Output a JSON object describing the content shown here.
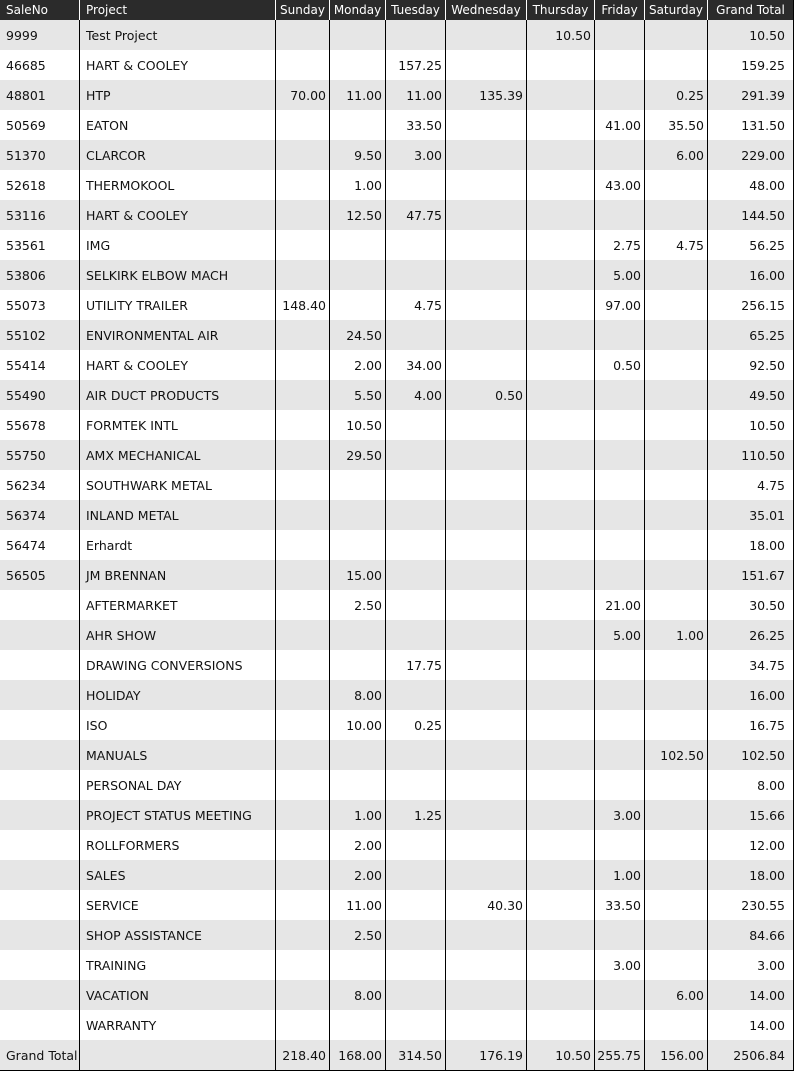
{
  "headers": [
    "SaleNo",
    "Project",
    "Sunday",
    "Monday",
    "Tuesday",
    "Wednesday",
    "Thursday",
    "Friday",
    "Saturday",
    "Grand Total"
  ],
  "rows": [
    [
      "9999",
      "Test Project",
      "",
      "",
      "",
      "",
      "10.50",
      "",
      "",
      "10.50"
    ],
    [
      "46685",
      "HART & COOLEY",
      "",
      "",
      "157.25",
      "",
      "",
      "",
      "",
      "159.25"
    ],
    [
      "48801",
      "HTP",
      "70.00",
      "11.00",
      "11.00",
      "135.39",
      "",
      "",
      "0.25",
      "291.39"
    ],
    [
      "50569",
      "EATON",
      "",
      "",
      "33.50",
      "",
      "",
      "41.00",
      "35.50",
      "131.50"
    ],
    [
      "51370",
      "CLARCOR",
      "",
      "9.50",
      "3.00",
      "",
      "",
      "",
      "6.00",
      "229.00"
    ],
    [
      "52618",
      "THERMOKOOL",
      "",
      "1.00",
      "",
      "",
      "",
      "43.00",
      "",
      "48.00"
    ],
    [
      "53116",
      "HART & COOLEY",
      "",
      "12.50",
      "47.75",
      "",
      "",
      "",
      "",
      "144.50"
    ],
    [
      "53561",
      "IMG",
      "",
      "",
      "",
      "",
      "",
      "2.75",
      "4.75",
      "56.25"
    ],
    [
      "53806",
      "SELKIRK ELBOW MACH",
      "",
      "",
      "",
      "",
      "",
      "5.00",
      "",
      "16.00"
    ],
    [
      "55073",
      "UTILITY TRAILER",
      "148.40",
      "",
      "4.75",
      "",
      "",
      "97.00",
      "",
      "256.15"
    ],
    [
      "55102",
      "ENVIRONMENTAL AIR",
      "",
      "24.50",
      "",
      "",
      "",
      "",
      "",
      "65.25"
    ],
    [
      "55414",
      "HART & COOLEY",
      "",
      "2.00",
      "34.00",
      "",
      "",
      "0.50",
      "",
      "92.50"
    ],
    [
      "55490",
      "AIR DUCT PRODUCTS",
      "",
      "5.50",
      "4.00",
      "0.50",
      "",
      "",
      "",
      "49.50"
    ],
    [
      "55678",
      "FORMTEK INTL",
      "",
      "10.50",
      "",
      "",
      "",
      "",
      "",
      "10.50"
    ],
    [
      "55750",
      "AMX MECHANICAL",
      "",
      "29.50",
      "",
      "",
      "",
      "",
      "",
      "110.50"
    ],
    [
      "56234",
      "SOUTHWARK METAL",
      "",
      "",
      "",
      "",
      "",
      "",
      "",
      "4.75"
    ],
    [
      "56374",
      "INLAND METAL",
      "",
      "",
      "",
      "",
      "",
      "",
      "",
      "35.01"
    ],
    [
      "56474",
      "Erhardt",
      "",
      "",
      "",
      "",
      "",
      "",
      "",
      "18.00"
    ],
    [
      "56505",
      "JM BRENNAN",
      "",
      "15.00",
      "",
      "",
      "",
      "",
      "",
      "151.67"
    ],
    [
      "",
      "AFTERMARKET",
      "",
      "2.50",
      "",
      "",
      "",
      "21.00",
      "",
      "30.50"
    ],
    [
      "",
      "AHR SHOW",
      "",
      "",
      "",
      "",
      "",
      "5.00",
      "1.00",
      "26.25"
    ],
    [
      "",
      "DRAWING CONVERSIONS",
      "",
      "",
      "17.75",
      "",
      "",
      "",
      "",
      "34.75"
    ],
    [
      "",
      "HOLIDAY",
      "",
      "8.00",
      "",
      "",
      "",
      "",
      "",
      "16.00"
    ],
    [
      "",
      "ISO",
      "",
      "10.00",
      "0.25",
      "",
      "",
      "",
      "",
      "16.75"
    ],
    [
      "",
      "MANUALS",
      "",
      "",
      "",
      "",
      "",
      "",
      "102.50",
      "102.50"
    ],
    [
      "",
      "PERSONAL DAY",
      "",
      "",
      "",
      "",
      "",
      "",
      "",
      "8.00"
    ],
    [
      "",
      "PROJECT STATUS MEETING",
      "",
      "1.00",
      "1.25",
      "",
      "",
      "3.00",
      "",
      "15.66"
    ],
    [
      "",
      "ROLLFORMERS",
      "",
      "2.00",
      "",
      "",
      "",
      "",
      "",
      "12.00"
    ],
    [
      "",
      "SALES",
      "",
      "2.00",
      "",
      "",
      "",
      "1.00",
      "",
      "18.00"
    ],
    [
      "",
      "SERVICE",
      "",
      "11.00",
      "",
      "40.30",
      "",
      "33.50",
      "",
      "230.55"
    ],
    [
      "",
      "SHOP ASSISTANCE",
      "",
      "2.50",
      "",
      "",
      "",
      "",
      "",
      "84.66"
    ],
    [
      "",
      "TRAINING",
      "",
      "",
      "",
      "",
      "",
      "3.00",
      "",
      "3.00"
    ],
    [
      "",
      "VACATION",
      "",
      "8.00",
      "",
      "",
      "",
      "",
      "6.00",
      "14.00"
    ],
    [
      "",
      "WARRANTY",
      "",
      "",
      "",
      "",
      "",
      "",
      "",
      "14.00"
    ]
  ],
  "grand_total": [
    "Grand Total",
    "",
    "218.40",
    "168.00",
    "314.50",
    "176.19",
    "10.50",
    "255.75",
    "156.00",
    "2506.84"
  ]
}
